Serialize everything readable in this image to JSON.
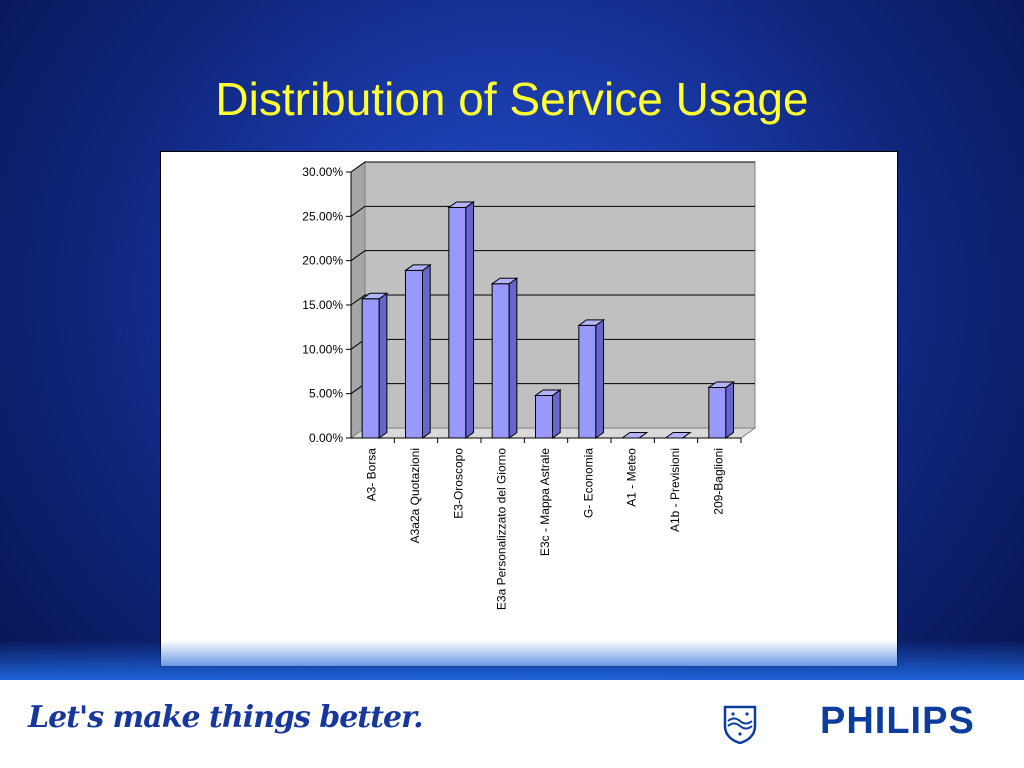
{
  "slide": {
    "title": "Distribution of Service Usage"
  },
  "footer": {
    "tagline": "Let's make things better.",
    "brand": "PHILIPS"
  },
  "colors": {
    "background": "#1a3aa8",
    "title": "#ffff33",
    "bar_front": "#9999ff",
    "bar_top": "#b3b3ff",
    "bar_side": "#6666cc",
    "plot_wall": "#c0c0c0",
    "brand": "#0b3d9c"
  },
  "chart_data": {
    "type": "bar",
    "title": "",
    "xlabel": "",
    "ylabel": "",
    "style": "3d-column",
    "categories": [
      "A3- Borsa",
      "A3a2a Quotazioni",
      "E3-Oroscopo",
      "E3a Personalizzato del Giorno",
      "E3c - Mappa Astrale",
      "G- Economia",
      "A1 - Meteo",
      "A1b - Previsioni",
      "209-Baglioni"
    ],
    "values": [
      15.7,
      18.9,
      26.0,
      17.4,
      4.8,
      12.7,
      0.0,
      0.0,
      5.7
    ],
    "unit": "%",
    "ylim": [
      0,
      30
    ],
    "yticks": [
      "0.00%",
      "5.00%",
      "10.00%",
      "15.00%",
      "20.00%",
      "25.00%",
      "30.00%"
    ],
    "grid": true,
    "legend": "none"
  }
}
